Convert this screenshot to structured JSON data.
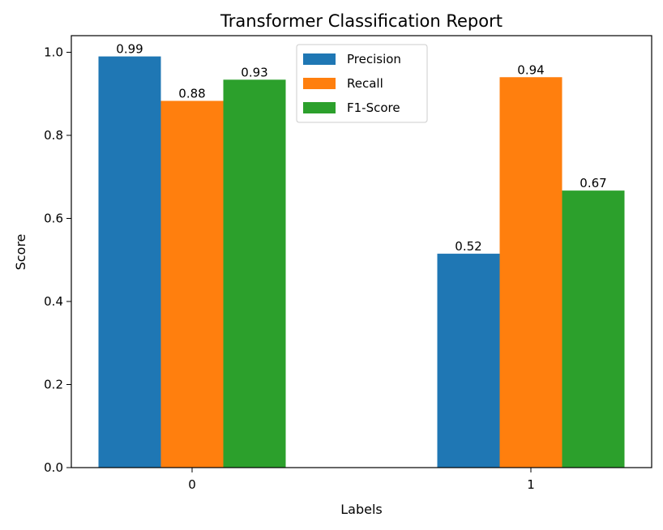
{
  "chart_data": {
    "type": "bar",
    "title": "Transformer Classification Report",
    "xlabel": "Labels",
    "ylabel": "Score",
    "categories": [
      "0",
      "1"
    ],
    "ylim": [
      0,
      1.04
    ],
    "yticks": [
      "0.0",
      "0.2",
      "0.4",
      "0.6",
      "0.8",
      "1.0"
    ],
    "grid": false,
    "legend_position": "top-center",
    "series": [
      {
        "name": "Precision",
        "color": "#1f77b4",
        "values": [
          0.99,
          0.515
        ],
        "labels": [
          "0.99",
          "0.52"
        ]
      },
      {
        "name": "Recall",
        "color": "#ff7f0e",
        "values": [
          0.883,
          0.94
        ],
        "labels": [
          "0.88",
          "0.94"
        ]
      },
      {
        "name": "F1-Score",
        "color": "#2ca02c",
        "values": [
          0.934,
          0.667
        ],
        "labels": [
          "0.93",
          "0.67"
        ]
      }
    ]
  }
}
